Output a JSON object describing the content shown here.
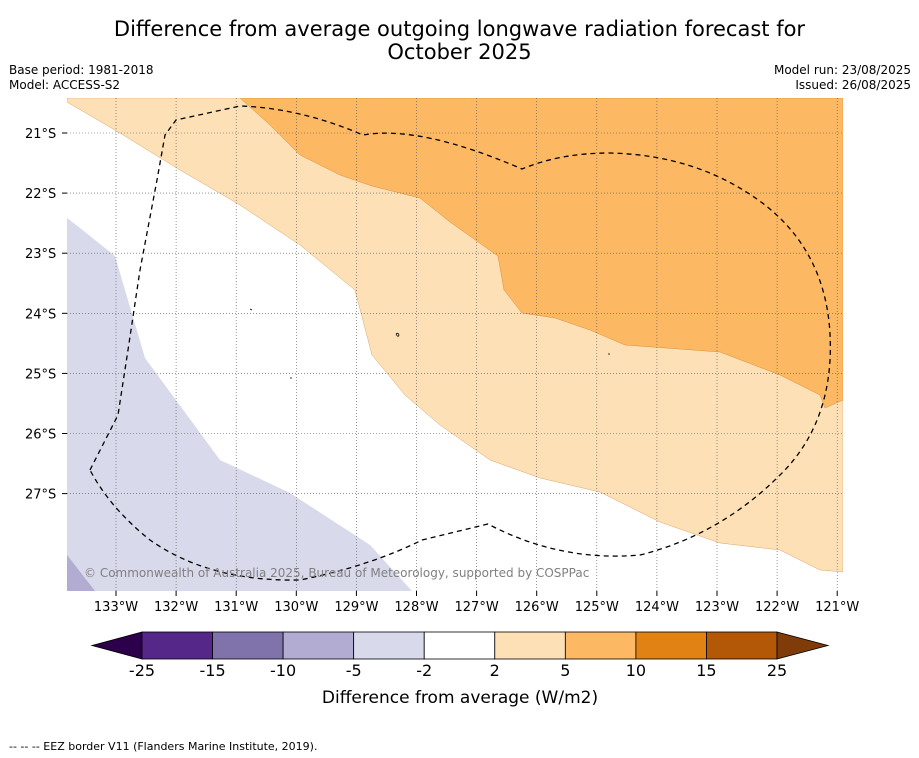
{
  "title_line1": "Difference from average outgoing longwave radiation forecast for",
  "title_line2": "October 2025",
  "base_period": "Base period: 1981-2018",
  "model": "Model: ACCESS-S2",
  "model_run": "Model run: 23/08/2025",
  "issued": "Issued: 26/08/2025",
  "copyright": "© Commonwealth of Australia 2025, Bureau of Meteorology, supported by COSPPac",
  "footer": "--  --  -- EEZ border V11 (Flanders Marine Institute, 2019).",
  "lon_labels": [
    "133°W",
    "132°W",
    "131°W",
    "130°W",
    "129°W",
    "128°W",
    "127°W",
    "126°W",
    "125°W",
    "124°W",
    "123°W",
    "122°W",
    "121°W"
  ],
  "lat_labels": [
    "21°S",
    "22°S",
    "23°S",
    "24°S",
    "25°S",
    "26°S",
    "27°S"
  ],
  "colorbar": {
    "label": "Difference from average (W/m2)",
    "ticks": [
      "-25",
      "-15",
      "-10",
      "-5",
      "-2",
      "2",
      "5",
      "10",
      "15",
      "25"
    ],
    "colors": {
      "below": "#2d004b",
      "bins": [
        "#542788",
        "#8073ac",
        "#b2abd2",
        "#d8daeb",
        "#ffffff",
        "#fee0b6",
        "#fdb863",
        "#e08214",
        "#b35806"
      ],
      "above": "#7f3b08"
    }
  }
}
